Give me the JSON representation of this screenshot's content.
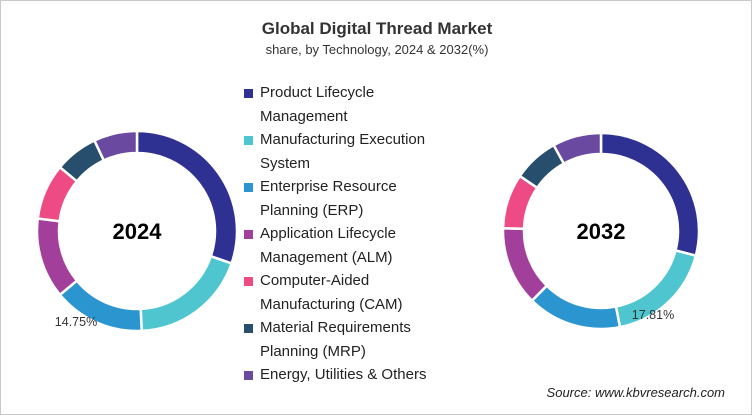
{
  "chart_data": [
    {
      "type": "pie",
      "donut": true,
      "title": "Global Digital Thread Market",
      "subtitle": "share, by Technology, 2024 & 2032(%)",
      "center_label": "2024",
      "categories": [
        "Product Lifecycle Management",
        "Manufacturing Execution System",
        "Enterprise Resource Planning (ERP)",
        "Application Lifecycle Management (ALM)",
        "Computer-Aided Manufacturing (CAM)",
        "Material Requirements Planning (MRP)",
        "Energy, Utilities & Others"
      ],
      "values": [
        30.25,
        19,
        14.75,
        13,
        9,
        7,
        7
      ],
      "data_labels": [
        {
          "category_index": 2,
          "text": "14.75%"
        }
      ]
    },
    {
      "type": "pie",
      "donut": true,
      "center_label": "2032",
      "categories": [
        "Product Lifecycle Management",
        "Manufacturing Execution System",
        "Enterprise Resource Planning (ERP)",
        "Application Lifecycle Management (ALM)",
        "Computer-Aided Manufacturing (CAM)",
        "Material Requirements Planning (MRP)",
        "Energy, Utilities & Others"
      ],
      "values": [
        29,
        17.81,
        15.5,
        13,
        9,
        7.5,
        8
      ],
      "data_labels": [
        {
          "category_index": 1,
          "text": "17.81%"
        }
      ]
    }
  ],
  "legend": {
    "placement": "center",
    "items": [
      {
        "label": "Product Lifecycle Management",
        "color": "#2e3192"
      },
      {
        "label": "Manufacturing Execution System",
        "color": "#4fc6cf"
      },
      {
        "label": "Enterprise Resource Planning (ERP)",
        "color": "#2b95d0"
      },
      {
        "label": "Application Lifecycle Management (ALM)",
        "color": "#a23f9b"
      },
      {
        "label": "Computer-Aided Manufacturing (CAM)",
        "color": "#ee4b84"
      },
      {
        "label": "Material Requirements Planning (MRP)",
        "color": "#284e6e"
      },
      {
        "label": "Energy, Utilities & Others",
        "color": "#6a4aa0"
      }
    ],
    "lines": [
      [
        "Product Lifecycle",
        "Management"
      ],
      [
        "Manufacturing Execution",
        "System"
      ],
      [
        "Enterprise Resource",
        "Planning (ERP)"
      ],
      [
        "Application Lifecycle",
        "Management (ALM)"
      ],
      [
        "Computer-Aided",
        "Manufacturing (CAM)"
      ],
      [
        "Material Requirements",
        "Planning (MRP)"
      ],
      [
        "Energy, Utilities & Others"
      ]
    ]
  },
  "source": "Source: www.kbvresearch.com"
}
